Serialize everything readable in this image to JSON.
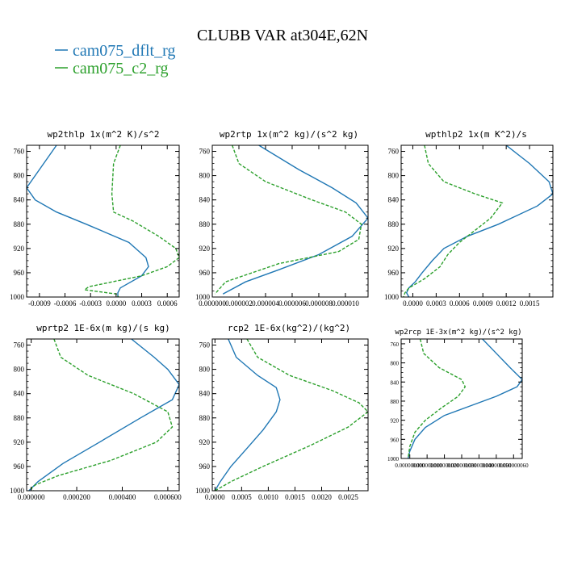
{
  "figure_title": "CLUBB VAR at304E,62N",
  "legend": [
    {
      "label": "cam075_dflt_rg",
      "color": "#1f77b4"
    },
    {
      "label": "cam075_c2_rg",
      "color": "#2ca02c"
    }
  ],
  "chart_data": [
    {
      "type": "line",
      "title": "wp2thlp  1x(m^2 K)/s^2",
      "xlim": [
        -0.00105,
        0.00074
      ],
      "ylim": [
        1000,
        750
      ],
      "yticks": [
        760,
        800,
        840,
        880,
        920,
        960,
        1000
      ],
      "xticks": [
        -0.0009,
        -0.0006,
        -0.0003,
        0,
        0.0003,
        0.0006
      ],
      "xticklabels": [
        "-0.0009",
        "-0.0006",
        "-0.0003",
        "0.0000",
        "0.0003",
        "0.0006"
      ],
      "series": [
        {
          "name": "cam075_dflt_rg",
          "dashed": false,
          "x": [
            -0.0007,
            -0.00085,
            -0.00105,
            -0.00095,
            -0.0007,
            -0.00035,
            0.00015,
            0.00035,
            0.00038,
            0.0003,
            5e-05,
            2e-05,
            2e-05
          ],
          "y": [
            750,
            780,
            820,
            840,
            860,
            880,
            910,
            935,
            950,
            965,
            985,
            993,
            1000
          ]
        },
        {
          "name": "cam075_c2_rg",
          "dashed": true,
          "x": [
            5e-05,
            -3e-05,
            -5e-05,
            -3e-05,
            0.0002,
            0.0005,
            0.0007,
            0.00074,
            0.0006,
            0.0003,
            -0.00032,
            -0.00037,
            0.0,
            3e-05
          ],
          "y": [
            750,
            780,
            830,
            860,
            875,
            900,
            920,
            935,
            950,
            965,
            983,
            988,
            995,
            1000
          ]
        }
      ]
    },
    {
      "type": "line",
      "title": "wp2rtp  1x(m^2 kg)/(s^2 kg)",
      "xlim": [
        0.0,
        1.17e-05
      ],
      "ylim": [
        1000,
        750
      ],
      "yticks": [
        760,
        800,
        840,
        880,
        920,
        960,
        1000
      ],
      "xticks": [
        0.0,
        2e-06,
        4e-06,
        6e-06,
        8e-06,
        1e-05
      ],
      "xticklabels": [
        "0.000000",
        "0.000002",
        "0.000004",
        "0.000006",
        "0.000008",
        "0.000010"
      ],
      "series": [
        {
          "name": "cam075_dflt_rg",
          "dashed": false,
          "x": [
            3.5e-06,
            6.5e-06,
            9e-06,
            1.08e-05,
            1.17e-05,
            1.05e-05,
            8e-06,
            5e-06,
            2.5e-06,
            8e-07
          ],
          "y": [
            750,
            790,
            820,
            845,
            870,
            900,
            930,
            955,
            975,
            995
          ]
        },
        {
          "name": "cam075_c2_rg",
          "dashed": true,
          "x": [
            1.5e-06,
            2e-06,
            4e-06,
            7.5e-06,
            1e-05,
            1.12e-05,
            1.1e-05,
            9.5e-06,
            5e-06,
            1e-06,
            2e-07
          ],
          "y": [
            750,
            780,
            810,
            840,
            860,
            880,
            905,
            925,
            945,
            975,
            995
          ]
        }
      ]
    },
    {
      "type": "line",
      "title": "wpthlp2  1x(m K^2)/s",
      "xlim": [
        -0.00015,
        0.0018
      ],
      "ylim": [
        1000,
        750
      ],
      "yticks": [
        760,
        800,
        840,
        880,
        920,
        960,
        1000
      ],
      "xticks": [
        0.0,
        0.0003,
        0.0006,
        0.0009,
        0.0012,
        0.0015
      ],
      "xticklabels": [
        "0.0000",
        "0.0003",
        "0.0006",
        "0.0009",
        "0.0012",
        "0.0015"
      ],
      "series": [
        {
          "name": "cam075_dflt_rg",
          "dashed": false,
          "x": [
            0.0012,
            0.0015,
            0.00175,
            0.0018,
            0.0016,
            0.0011,
            0.0007,
            0.0004,
            0.00025,
            0.00012,
            3e-05,
            -5e-05,
            -8e-05,
            -5e-05
          ],
          "y": [
            750,
            780,
            810,
            830,
            850,
            880,
            900,
            920,
            940,
            960,
            975,
            985,
            993,
            1000
          ]
        },
        {
          "name": "cam075_c2_rg",
          "dashed": true,
          "x": [
            0.00015,
            0.0002,
            0.0004,
            0.0008,
            0.00115,
            0.001,
            0.0008,
            0.0006,
            0.00045,
            0.00035,
            0.00015,
            -5e-05,
            -0.0001,
            -0.00012
          ],
          "y": [
            750,
            780,
            810,
            830,
            845,
            870,
            890,
            910,
            930,
            950,
            970,
            985,
            993,
            1000
          ]
        }
      ]
    },
    {
      "type": "line",
      "title": "wprtp2  1E-6x(m kg)/(s kg)",
      "xlim": [
        -2e-05,
        0.00065
      ],
      "ylim": [
        1000,
        750
      ],
      "yticks": [
        760,
        800,
        840,
        880,
        920,
        960,
        1000
      ],
      "xticks": [
        0.0,
        0.0002,
        0.0004,
        0.0006
      ],
      "xticklabels": [
        "0.000000",
        "0.000200",
        "0.000400",
        "0.000600"
      ],
      "series": [
        {
          "name": "cam075_dflt_rg",
          "dashed": false,
          "x": [
            0.00044,
            0.00054,
            0.0006,
            0.00065,
            0.00062,
            0.00048,
            0.0003,
            0.00014,
            3e-05,
            -1e-05
          ],
          "y": [
            750,
            780,
            800,
            825,
            850,
            880,
            920,
            955,
            985,
            1000
          ]
        },
        {
          "name": "cam075_c2_rg",
          "dashed": true,
          "x": [
            0.0001,
            0.00013,
            0.00025,
            0.00045,
            0.0006,
            0.00062,
            0.00055,
            0.00035,
            0.00012,
            2e-05,
            0.0,
            1e-05
          ],
          "y": [
            750,
            780,
            810,
            840,
            870,
            895,
            920,
            950,
            975,
            990,
            996,
            1000
          ]
        }
      ]
    },
    {
      "type": "line",
      "title": "rcp2  1E-6x(kg^2)/(kg^2)",
      "xlim": [
        -5e-05,
        0.00287
      ],
      "ylim": [
        1000,
        750
      ],
      "yticks": [
        760,
        800,
        840,
        880,
        920,
        960,
        1000
      ],
      "xticks": [
        0.0,
        0.0005,
        0.001,
        0.0015,
        0.002,
        0.0025
      ],
      "xticklabels": [
        "0.0000",
        "0.0005",
        "0.0010",
        "0.0015",
        "0.0020",
        "0.0025"
      ],
      "series": [
        {
          "name": "cam075_dflt_rg",
          "dashed": false,
          "x": [
            0.00025,
            0.0004,
            0.0008,
            0.00115,
            0.00122,
            0.00115,
            0.0009,
            0.0006,
            0.0003,
            0.0001,
            0.0
          ],
          "y": [
            750,
            780,
            810,
            830,
            850,
            870,
            900,
            930,
            960,
            985,
            1000
          ]
        },
        {
          "name": "cam075_c2_rg",
          "dashed": true,
          "x": [
            0.0006,
            0.0008,
            0.0014,
            0.0022,
            0.0027,
            0.00287,
            0.0025,
            0.0018,
            0.0009,
            0.0003,
            0.0
          ],
          "y": [
            750,
            780,
            810,
            835,
            855,
            870,
            895,
            925,
            960,
            985,
            1000
          ]
        }
      ]
    },
    {
      "type": "line",
      "title": "wp2rcp  1E-3x(m^2 kg)/(s^2 kg)",
      "xlim": [
        -5e-09,
        6.5e-08
      ],
      "ylim": [
        1000,
        750
      ],
      "yticks": [
        760,
        800,
        840,
        880,
        920,
        960,
        1000
      ],
      "xticks": [
        0.0,
        1e-08,
        2e-08,
        3e-08,
        4e-08,
        5e-08,
        6e-08
      ],
      "xticklabels": [
        "0.000000000",
        "0.000000010",
        "0.000000020",
        "0.000000030",
        "0.000000040",
        "0.000000050",
        "0.000000060"
      ],
      "series": [
        {
          "name": "cam075_dflt_rg",
          "dashed": false,
          "x": [
            4.2e-08,
            5e-08,
            5.8e-08,
            6.5e-08,
            6.2e-08,
            5e-08,
            3.5e-08,
            2e-08,
            9e-09,
            3e-09,
            0.0,
            -1e-09
          ],
          "y": [
            750,
            780,
            810,
            835,
            850,
            870,
            890,
            910,
            935,
            960,
            985,
            1000
          ]
        },
        {
          "name": "cam075_c2_rg",
          "dashed": true,
          "x": [
            6e-09,
            8e-09,
            1.7e-08,
            3e-08,
            3.2e-08,
            2.8e-08,
            1.8e-08,
            9e-09,
            3e-09,
            0.0,
            -1e-09
          ],
          "y": [
            750,
            780,
            810,
            835,
            850,
            870,
            895,
            920,
            945,
            975,
            1000
          ]
        }
      ]
    }
  ]
}
